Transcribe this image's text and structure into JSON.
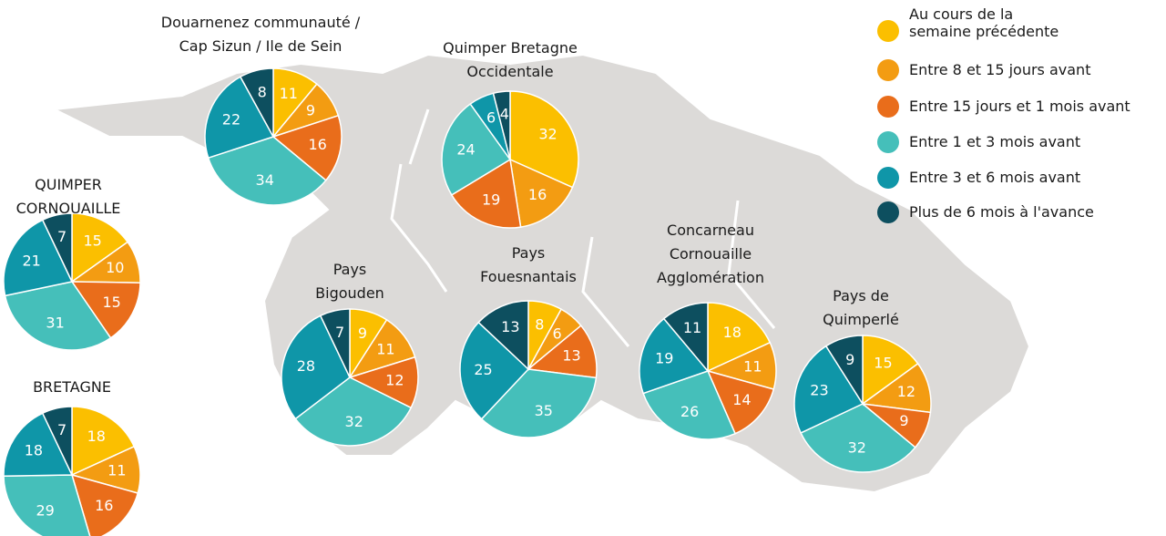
{
  "chart_data": {
    "type": "pie",
    "categories": [
      "Douarnenez communauté /\nCap Sizun / Ile de Sein",
      "Quimper Bretagne\nOccidentale",
      "QUIMPER\nCORNOUAILLE",
      "BRETAGNE",
      "Pays\nBigouden",
      "Pays\nFouesnantais",
      "Concarneau\nCornouaille\nAgglomération",
      "Pays de\nQuimperlé"
    ],
    "series": [
      {
        "name": "Au cours de la\nsemaine précédente",
        "color": "#fbbf00",
        "values": [
          11,
          32,
          15,
          18,
          9,
          8,
          18,
          15
        ]
      },
      {
        "name": "Entre 8 et 15 jours avant",
        "color": "#f39c12",
        "values": [
          9,
          16,
          10,
          11,
          11,
          6,
          11,
          12
        ]
      },
      {
        "name": "Entre 15 jours et 1 mois avant",
        "color": "#e96d1b",
        "values": [
          16,
          19,
          15,
          16,
          12,
          13,
          14,
          9
        ]
      },
      {
        "name": "Entre 1 et 3 mois avant",
        "color": "#45bfba",
        "values": [
          34,
          24,
          31,
          29,
          32,
          35,
          26,
          32
        ]
      },
      {
        "name": "Entre 3 et 6 mois avant",
        "color": "#0f96a8",
        "values": [
          22,
          6,
          21,
          18,
          28,
          25,
          19,
          23
        ]
      },
      {
        "name": "Plus de 6 mois à l'avance",
        "color": "#0d4f5f",
        "values": [
          8,
          4,
          7,
          7,
          7,
          13,
          11,
          9
        ]
      }
    ]
  }
}
